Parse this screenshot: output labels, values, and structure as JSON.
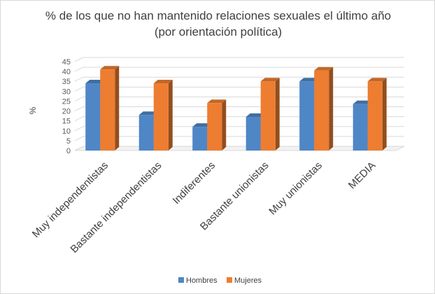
{
  "chart_data": {
    "type": "bar",
    "title": "% de los que no han mantenido relaciones sexuales el último año",
    "subtitle": "(por orientación política)",
    "ylabel": "%",
    "xlabel": "",
    "categories": [
      "Muy independentistas",
      "Bastante independentistas",
      "Indiferentes",
      "Bastante unionistas",
      "Muy unionistas",
      "MEDIA"
    ],
    "series": [
      {
        "name": "Hombres",
        "values": [
          34,
          18,
          12,
          17,
          35,
          23.5
        ],
        "color": "#4f86c6"
      },
      {
        "name": "Mujeres",
        "values": [
          41,
          34,
          24,
          35,
          40.5,
          35
        ],
        "color": "#ed7d31"
      }
    ],
    "ylim": [
      0,
      45
    ],
    "yticks": [
      0,
      5,
      10,
      15,
      20,
      25,
      30,
      35,
      40,
      45
    ],
    "grid": true,
    "legend": "bottom",
    "style": "3d-column"
  }
}
